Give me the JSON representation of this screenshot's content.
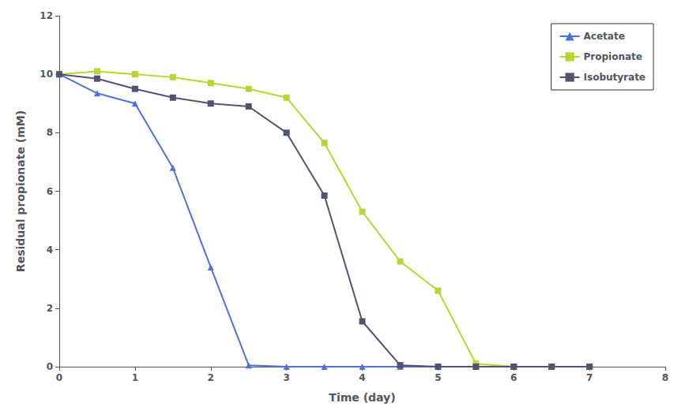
{
  "chart_data": {
    "type": "line",
    "xlabel": "Time (day)",
    "ylabel": "Residual propionate (mM)",
    "xlim": [
      0,
      8
    ],
    "ylim": [
      0,
      12
    ],
    "xticks": [
      0,
      1,
      2,
      3,
      4,
      5,
      6,
      7,
      8
    ],
    "yticks": [
      0,
      2,
      4,
      6,
      8,
      10,
      12
    ],
    "grid": false,
    "legend": "upper right",
    "series": [
      {
        "name": "Acetate",
        "marker": "triangle",
        "x": [
          0,
          0.5,
          1.0,
          1.5,
          2.0,
          2.5,
          3.0,
          3.5,
          4.0,
          4.5,
          5.0,
          5.5,
          6.0,
          6.5,
          7.0
        ],
        "values": [
          10.0,
          9.35,
          9.0,
          6.8,
          3.4,
          0.05,
          0.0,
          0.0,
          0.0,
          0.0,
          0.0,
          0.0,
          0.0,
          0.0,
          0.0
        ]
      },
      {
        "name": "Propionate",
        "marker": "square",
        "x": [
          0,
          0.5,
          1.0,
          1.5,
          2.0,
          2.5,
          3.0,
          3.5,
          4.0,
          4.5,
          5.0,
          5.5,
          6.0,
          6.5,
          7.0
        ],
        "values": [
          10.0,
          10.1,
          10.0,
          9.9,
          9.7,
          9.5,
          9.2,
          7.65,
          5.3,
          3.6,
          2.6,
          0.1,
          0.0,
          0.0,
          0.0
        ]
      },
      {
        "name": "Isobutyrate",
        "marker": "square",
        "x": [
          0,
          0.5,
          1.0,
          1.5,
          2.0,
          2.5,
          3.0,
          3.5,
          4.0,
          4.5,
          5.0,
          5.5,
          6.0,
          6.5,
          7.0
        ],
        "values": [
          10.0,
          9.85,
          9.5,
          9.2,
          9.0,
          8.9,
          8.0,
          5.85,
          1.55,
          0.05,
          0.0,
          0.0,
          0.0,
          0.0,
          0.0
        ]
      }
    ]
  }
}
